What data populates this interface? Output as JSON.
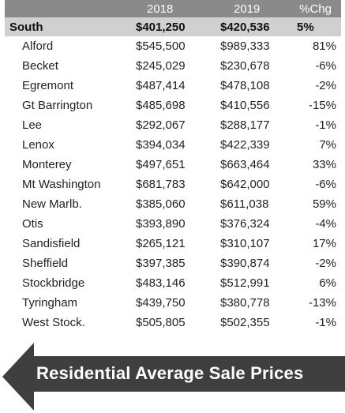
{
  "table": {
    "columns": [
      "",
      "2018",
      "2019",
      "%Chg"
    ],
    "region": {
      "name": "South",
      "y2018": "$401,250",
      "y2019": "$420,536",
      "chg": "5%"
    },
    "rows": [
      {
        "name": "Alford",
        "y2018": "$545,500",
        "y2019": "$989,333",
        "chg": "81%"
      },
      {
        "name": "Becket",
        "y2018": "$245,029",
        "y2019": "$230,678",
        "chg": "-6%"
      },
      {
        "name": "Egremont",
        "y2018": "$487,414",
        "y2019": "$478,108",
        "chg": "-2%"
      },
      {
        "name": "Gt Barrington",
        "y2018": "$485,698",
        "y2019": "$410,556",
        "chg": "-15%"
      },
      {
        "name": "Lee",
        "y2018": "$292,067",
        "y2019": "$288,177",
        "chg": "-1%"
      },
      {
        "name": "Lenox",
        "y2018": "$394,034",
        "y2019": "$422,339",
        "chg": "7%"
      },
      {
        "name": "Monterey",
        "y2018": "$497,651",
        "y2019": "$663,464",
        "chg": "33%"
      },
      {
        "name": "Mt Washington",
        "y2018": "$681,783",
        "y2019": "$642,000",
        "chg": "-6%"
      },
      {
        "name": "New Marlb.",
        "y2018": "$385,060",
        "y2019": "$611,038",
        "chg": "59%"
      },
      {
        "name": "Otis",
        "y2018": "$393,890",
        "y2019": "$376,324",
        "chg": "-4%"
      },
      {
        "name": "Sandisfield",
        "y2018": "$265,121",
        "y2019": "$310,107",
        "chg": "17%"
      },
      {
        "name": "Sheffield",
        "y2018": "$397,385",
        "y2019": "$390,874",
        "chg": "-2%"
      },
      {
        "name": "Stockbridge",
        "y2018": "$483,146",
        "y2019": "$512,991",
        "chg": "6%"
      },
      {
        "name": "Tyringham",
        "y2018": "$439,750",
        "y2019": "$380,778",
        "chg": "-13%"
      },
      {
        "name": "West Stock.",
        "y2018": "$505,805",
        "y2019": "$502,355",
        "chg": "-1%"
      }
    ]
  },
  "banner": {
    "text": "Residential Average Sale Prices",
    "icon": "left-arrow-icon"
  },
  "colors": {
    "header_bg": "#8a8a8a",
    "region_bg": "#d0d0d0",
    "banner_bg": "#3f3f3f"
  }
}
